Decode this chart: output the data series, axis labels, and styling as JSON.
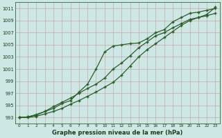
{
  "xlabel": "Graphe pression niveau de la mer (hPa)",
  "background_color": "#cde8e4",
  "grid_color": "#c8a8a8",
  "line_color": "#2a5c2a",
  "xlim_min": -0.5,
  "xlim_max": 23.5,
  "ylim_min": 992.0,
  "ylim_max": 1012.0,
  "yticks": [
    993,
    995,
    997,
    999,
    1001,
    1003,
    1005,
    1007,
    1009,
    1011
  ],
  "xticks": [
    0,
    1,
    2,
    3,
    4,
    5,
    6,
    7,
    8,
    9,
    10,
    11,
    12,
    13,
    14,
    15,
    16,
    17,
    18,
    19,
    20,
    21,
    22,
    23
  ],
  "series": [
    [
      993.0,
      993.1,
      993.4,
      994.0,
      994.5,
      995.3,
      995.8,
      997.2,
      998.5,
      1001.0,
      1003.8,
      1004.8,
      1005.0,
      1005.2,
      1005.3,
      1006.0,
      1007.0,
      1007.5,
      1008.8,
      1009.5,
      1010.2,
      1010.4,
      1010.7,
      1011.0
    ],
    [
      993.0,
      993.1,
      993.5,
      994.0,
      994.8,
      995.5,
      996.2,
      997.0,
      997.8,
      998.5,
      999.5,
      1001.0,
      1002.0,
      1003.2,
      1004.5,
      1005.5,
      1006.5,
      1007.0,
      1007.8,
      1008.5,
      1009.2,
      1009.5,
      1009.8,
      1010.2
    ],
    [
      993.0,
      993.0,
      993.2,
      993.6,
      994.0,
      994.5,
      995.2,
      995.8,
      996.5,
      997.2,
      998.0,
      998.8,
      1000.0,
      1001.5,
      1003.0,
      1004.2,
      1005.2,
      1006.2,
      1007.2,
      1008.2,
      1009.0,
      1009.5,
      1010.0,
      1011.2
    ]
  ]
}
